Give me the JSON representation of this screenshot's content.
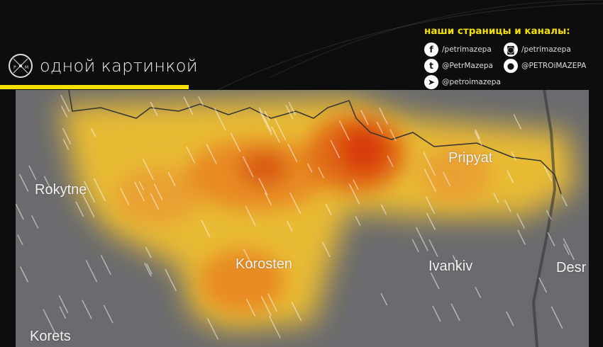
{
  "header": {
    "title": "одной картинкой",
    "logo_letters": "P M"
  },
  "social": {
    "heading": "наши страницы и каналы:",
    "items": [
      {
        "icon": "facebook-icon",
        "handle": "/petrimazepa"
      },
      {
        "icon": "instagram-icon",
        "handle": "/petrimazepa"
      },
      {
        "icon": "twitter-icon",
        "handle": "@PetrMazepa"
      },
      {
        "icon": "reddit-icon",
        "handle": "@PETROiMAZEPA"
      },
      {
        "icon": "telegram-icon",
        "handle": "@petroimazepa"
      }
    ]
  },
  "map": {
    "labels": {
      "rokytne": "Rokytne",
      "korosten": "Korosten",
      "pripyat": "Pripyat",
      "ivankiv": "Ivankiv",
      "desna": "Desr",
      "korets": "Korets"
    },
    "colors": {
      "base": "#6a6b6e",
      "low": "#f0c030",
      "mid": "#e88a20",
      "high": "#d83a10",
      "accent": "#f5e000"
    }
  }
}
